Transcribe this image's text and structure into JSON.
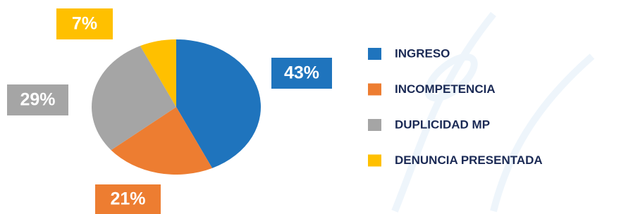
{
  "chart_data": {
    "type": "pie",
    "categories": [
      "INGRESO",
      "INCOMPETENCIA",
      "DUPLICIDAD MP",
      "DENUNCIA PRESENTADA"
    ],
    "values": [
      43,
      21,
      29,
      7
    ],
    "value_labels": [
      "43%",
      "21%",
      "29%",
      "7%"
    ],
    "colors": [
      "#1f74bd",
      "#ed7d31",
      "#a5a5a5",
      "#ffc000"
    ]
  }
}
